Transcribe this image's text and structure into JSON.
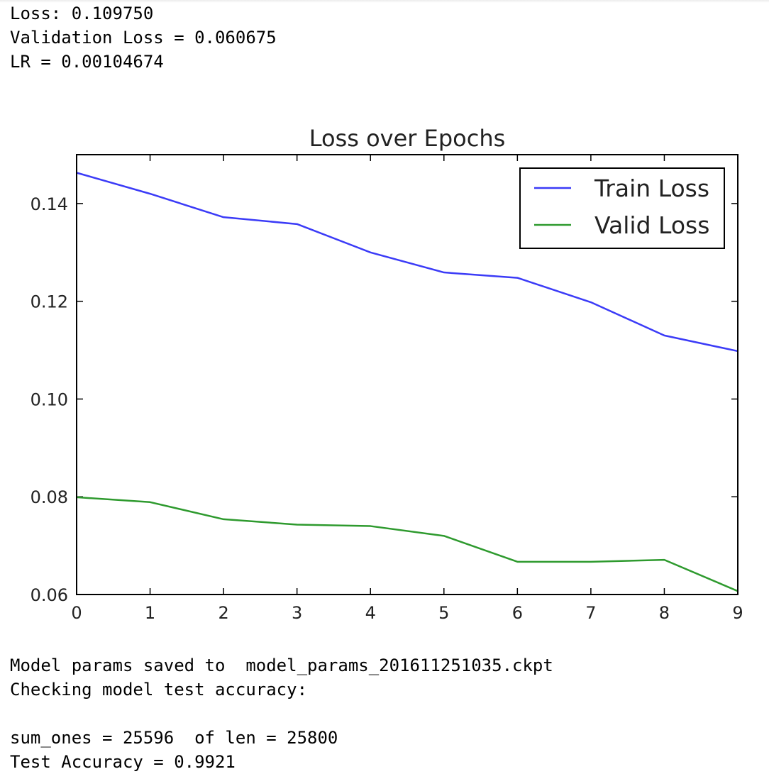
{
  "top_output": [
    "Loss: 0.109750",
    "Validation Loss = 0.060675",
    "LR = 0.00104674"
  ],
  "bottom_output": [
    "Model params saved to  model_params_201611251035.ckpt",
    "Checking model test accuracy:",
    "",
    "sum_ones = 25596  of len = 25800",
    "Test Accuracy = 0.9921"
  ],
  "chart_data": {
    "type": "line",
    "title": "Loss over Epochs",
    "xlabel": "",
    "ylabel": "",
    "x": [
      0,
      1,
      2,
      3,
      4,
      5,
      6,
      7,
      8,
      9
    ],
    "xlim": [
      0,
      9
    ],
    "ylim": [
      0.06,
      0.15
    ],
    "xticks": [
      "0",
      "1",
      "2",
      "3",
      "4",
      "5",
      "6",
      "7",
      "8",
      "9"
    ],
    "yticks": [
      "0.06",
      "0.08",
      "0.10",
      "0.12",
      "0.14"
    ],
    "grid": false,
    "legend_position": "top-right",
    "series": [
      {
        "name": "Train Loss",
        "color": "#3b3bf7",
        "values": [
          0.1463,
          0.142,
          0.1372,
          0.1358,
          0.13,
          0.1259,
          0.1248,
          0.1198,
          0.113,
          0.1098
        ]
      },
      {
        "name": "Valid Loss",
        "color": "#2e9a2e",
        "values": [
          0.0799,
          0.0789,
          0.0754,
          0.0743,
          0.074,
          0.072,
          0.0667,
          0.0667,
          0.0671,
          0.0607
        ]
      }
    ]
  }
}
